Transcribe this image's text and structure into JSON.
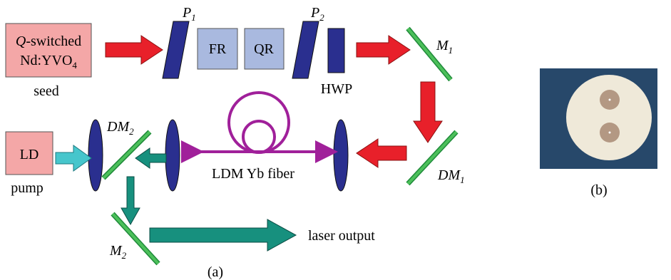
{
  "diagram": {
    "seed_box": {
      "line1": {
        "italic": "Q",
        "rest": "-switched"
      },
      "line2": {
        "main": "Nd:YVO",
        "sub": "4"
      },
      "caption": "seed"
    },
    "p1": {
      "main": "P",
      "sub": "1"
    },
    "fr": "FR",
    "qr": "QR",
    "p2": {
      "main": "P",
      "sub": "2"
    },
    "hwp": "HWP",
    "m1": {
      "main": "M",
      "sub": "1"
    },
    "dm1": {
      "main": "DM",
      "sub": "1"
    },
    "dm2": {
      "main": "DM",
      "sub": "2"
    },
    "m2": {
      "main": "M",
      "sub": "2"
    },
    "ld_box": {
      "label": "LD",
      "caption": "pump"
    },
    "fiber": "LDM Yb fiber",
    "output": "laser output",
    "panel_a": "(a)",
    "panel_b": "(b)"
  }
}
